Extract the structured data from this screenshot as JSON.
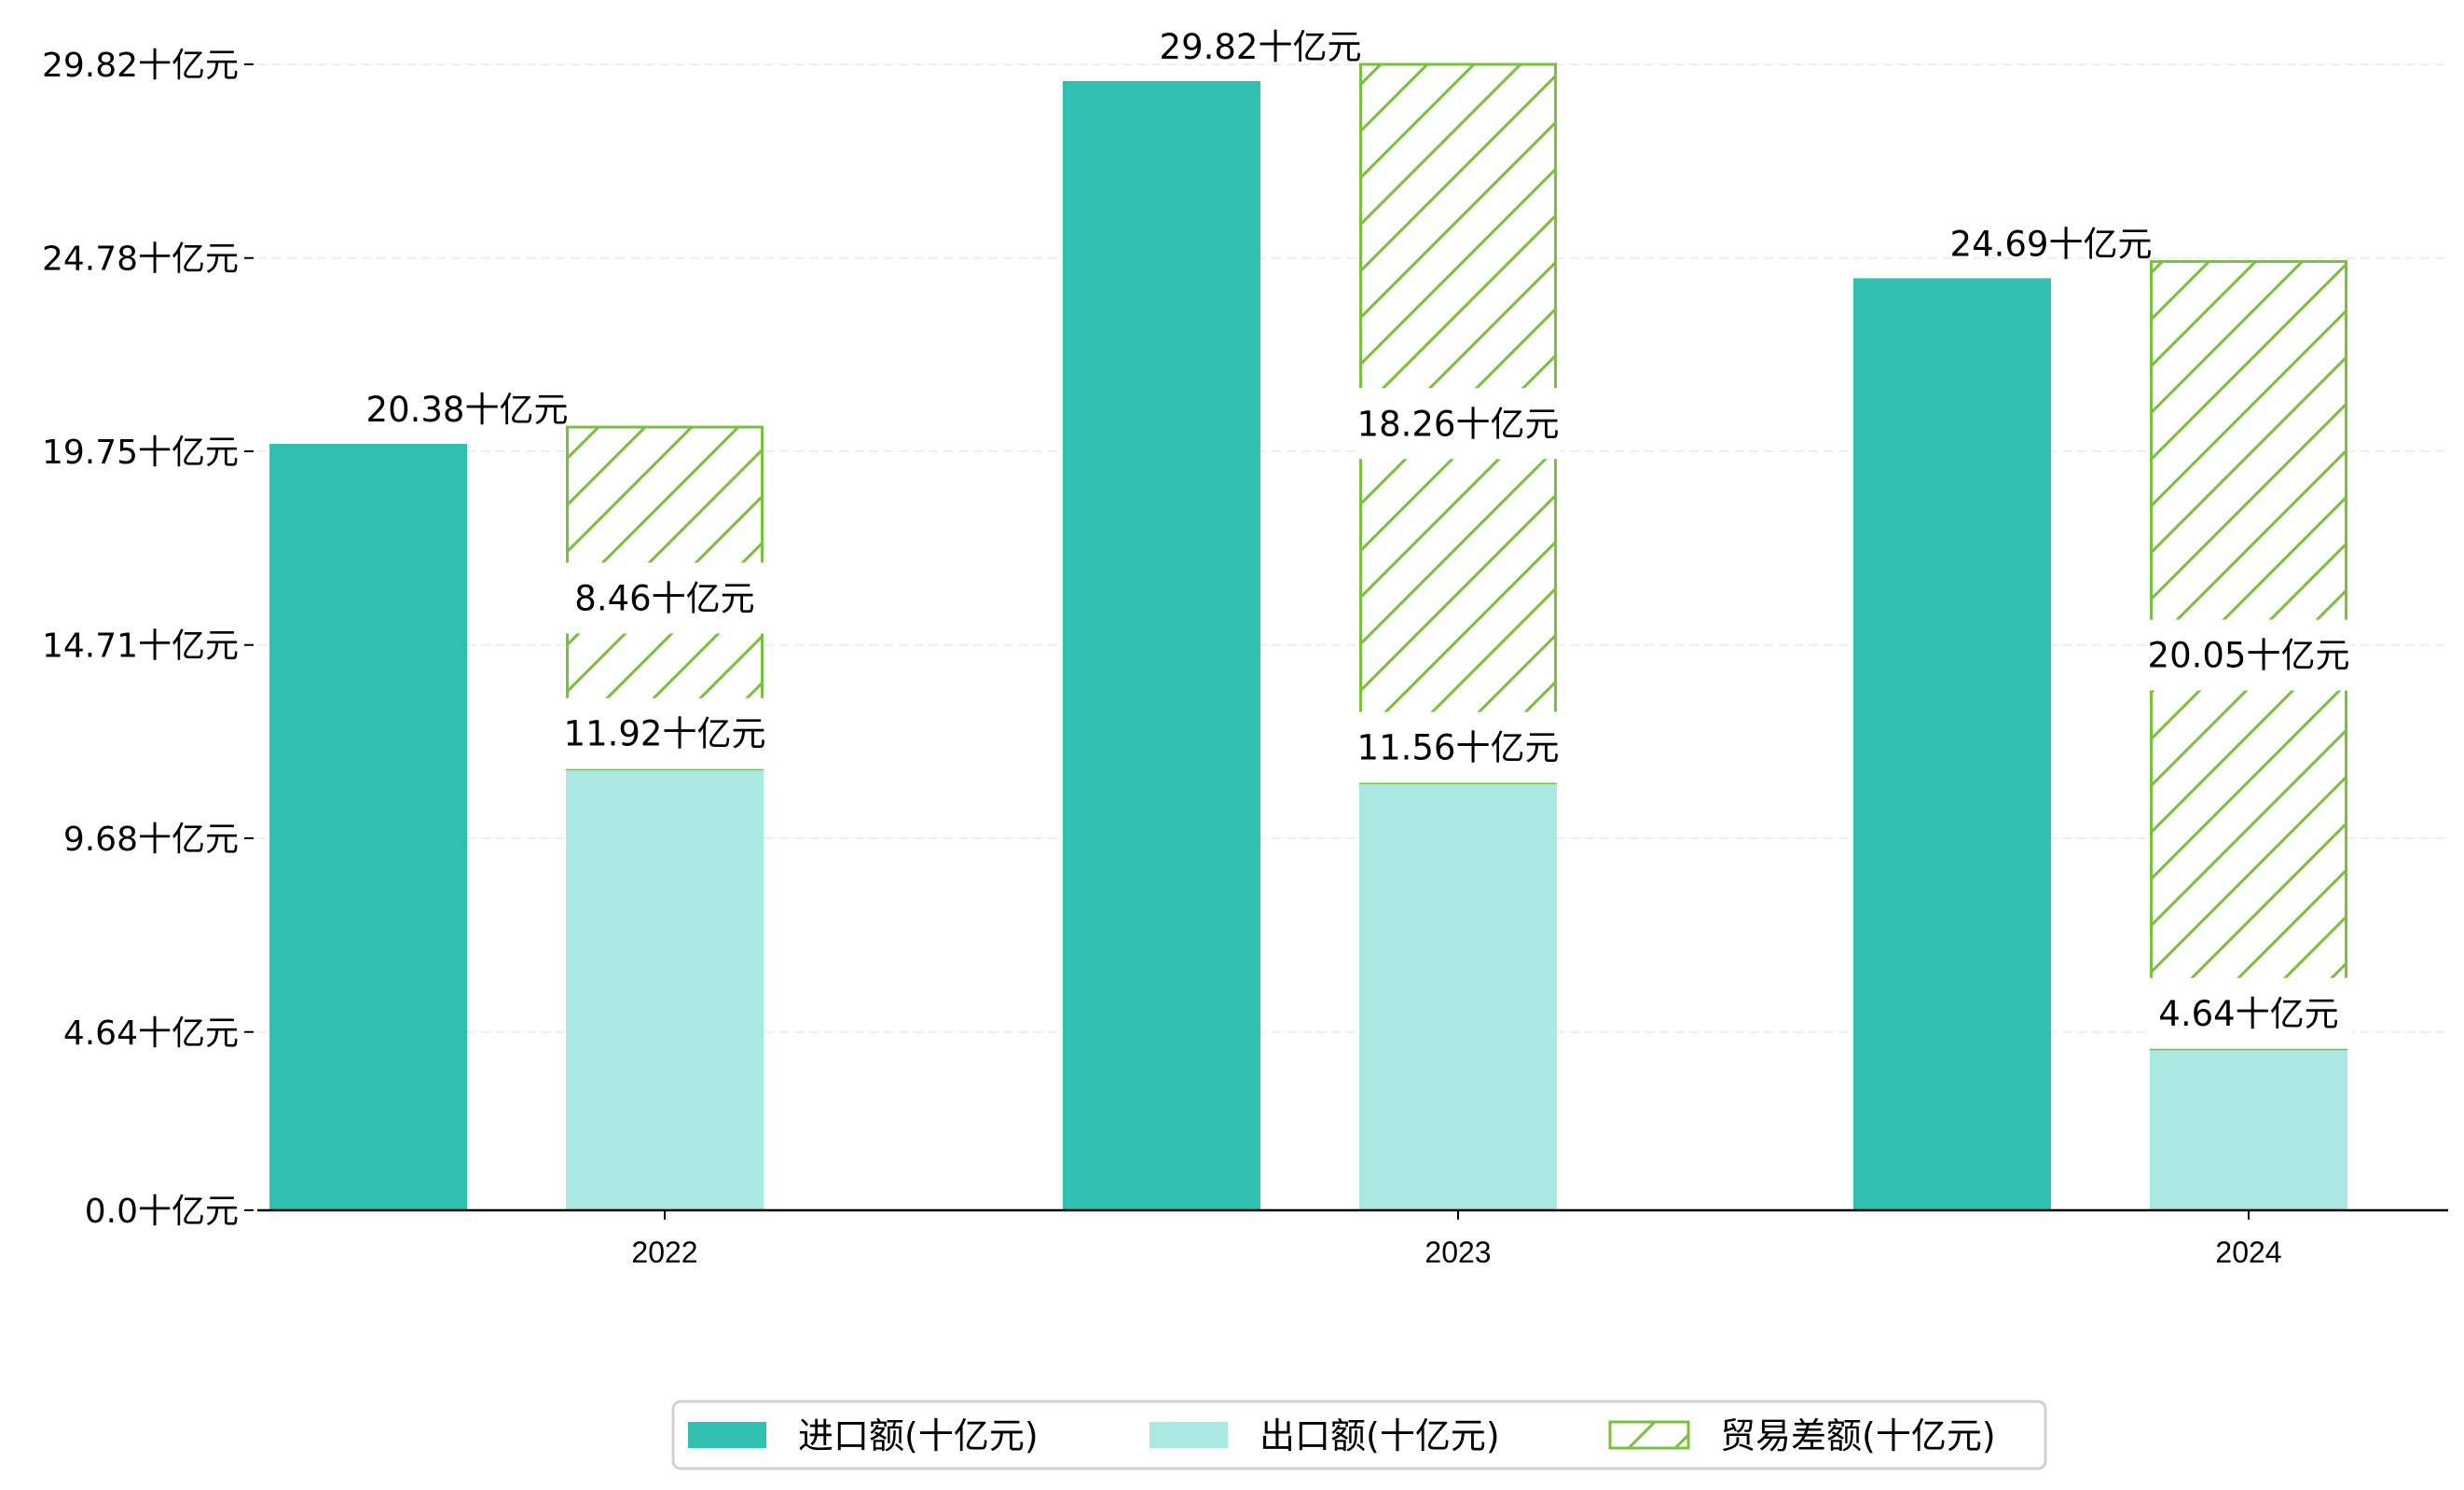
{
  "chart_data": {
    "type": "bar",
    "title": "",
    "xlabel": "",
    "ylabel": "",
    "categories": [
      "2022",
      "2023",
      "2024"
    ],
    "ylim": [
      0,
      29.82
    ],
    "yticks": [
      0.0,
      4.64,
      9.68,
      14.71,
      19.75,
      24.78,
      29.82
    ],
    "ytick_labels": [
      "0.0十亿元",
      "4.64十亿元",
      "9.68十亿元",
      "14.71十亿元",
      "19.75十亿元",
      "24.78十亿元",
      "29.82十亿元"
    ],
    "grid": true,
    "legend_position": "bottom-center",
    "series": [
      {
        "name": "进口额(十亿元)",
        "values": [
          20.38,
          29.82,
          24.69
        ],
        "labels": [
          "20.38十亿元",
          "29.82十亿元",
          "24.69十亿元"
        ],
        "color": "#30c0b2"
      },
      {
        "name": "出口额(十亿元)",
        "values": [
          11.92,
          11.56,
          4.64
        ],
        "labels": [
          "11.92十亿元",
          "11.56十亿元",
          "4.64十亿元"
        ],
        "color": "#abe8e2"
      },
      {
        "name": "贸易差额(十亿元)",
        "values": [
          8.46,
          18.26,
          20.05
        ],
        "labels": [
          "8.46十亿元",
          "18.26十亿元",
          "20.05十亿元"
        ],
        "color": "#7bbf3f",
        "stacked_on": "出口额(十亿元)",
        "hatch": "/"
      }
    ]
  }
}
